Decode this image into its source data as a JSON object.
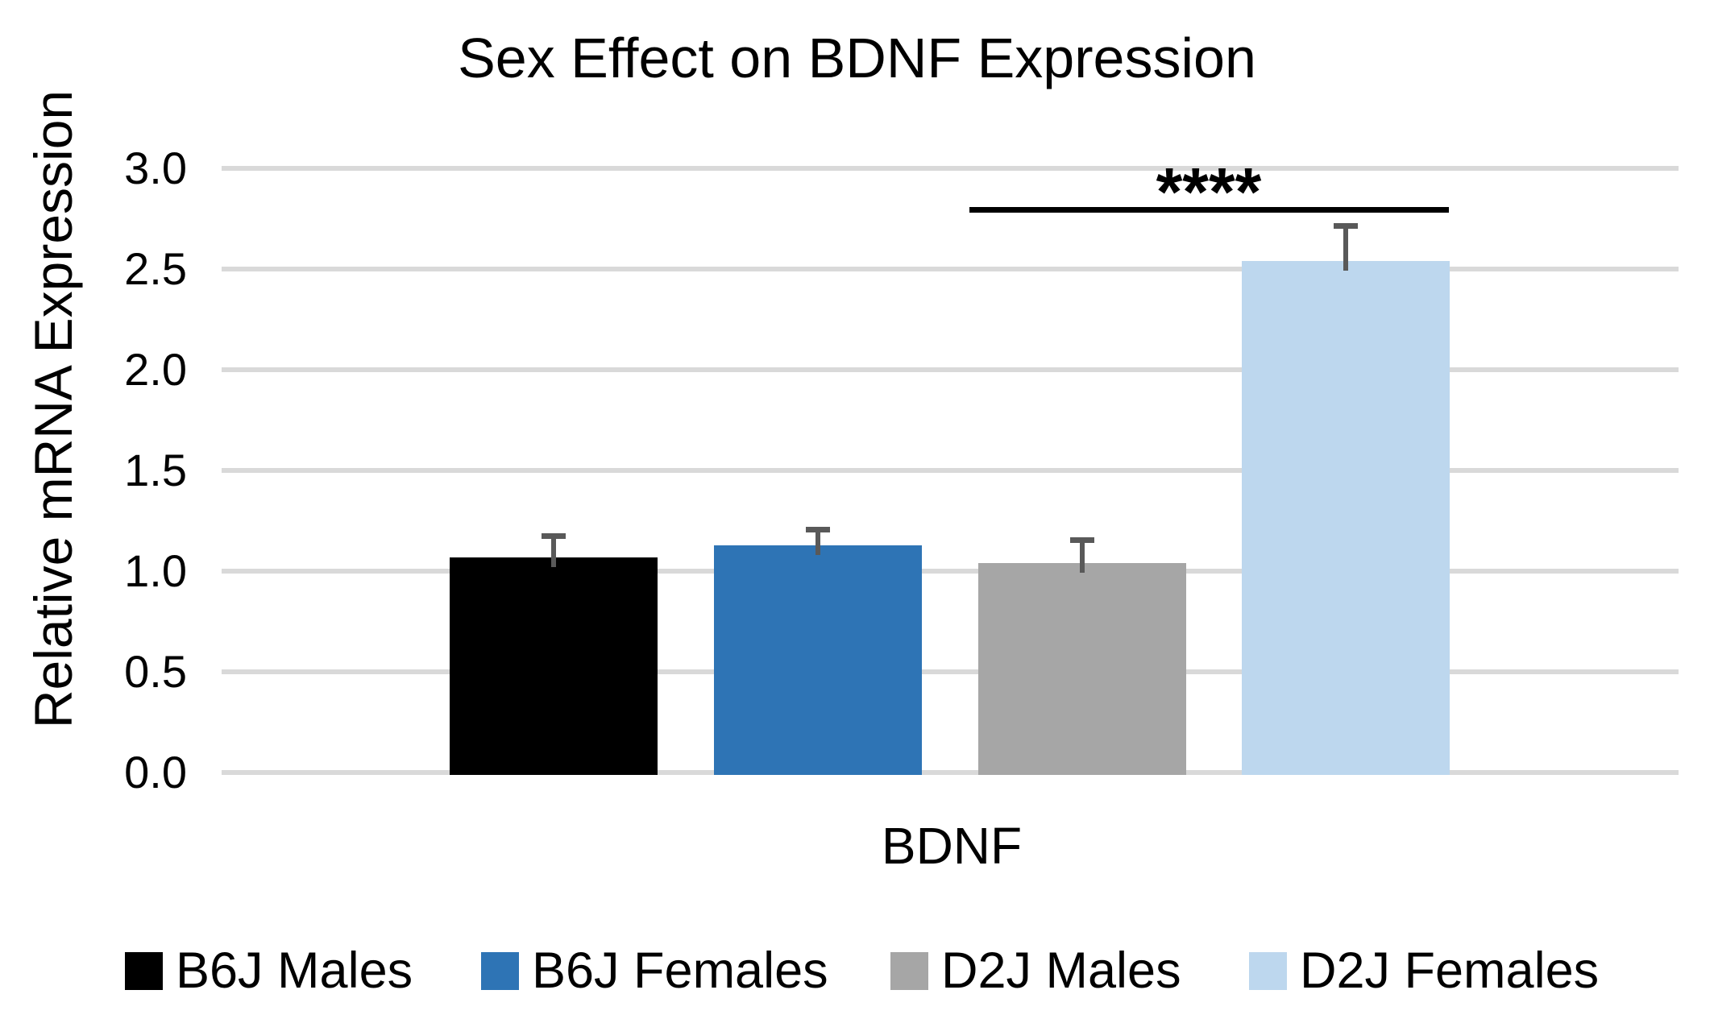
{
  "chart_data": {
    "type": "bar",
    "title": "Sex Effect on BDNF Expression",
    "xlabel": "BDNF",
    "ylabel": "Relative mRNA Expression",
    "categories": [
      "BDNF"
    ],
    "series": [
      {
        "name": "B6J Males",
        "color": "#000000",
        "value": 1.07,
        "error_up": 0.12
      },
      {
        "name": "B6J Females",
        "color": "#2E74B5",
        "value": 1.13,
        "error_up": 0.09
      },
      {
        "name": "D2J Males",
        "color": "#A6A6A6",
        "value": 1.04,
        "error_up": 0.13
      },
      {
        "name": "D2J Females",
        "color": "#BDD7EE",
        "value": 2.54,
        "error_up": 0.19
      }
    ],
    "ylim": [
      0,
      3.0
    ],
    "ytick_step": 0.5,
    "yticks": [
      "0.0",
      "0.5",
      "1.0",
      "1.5",
      "2.0",
      "2.5",
      "3.0"
    ],
    "grid": true,
    "legend_position": "bottom",
    "annotation": {
      "text": "****",
      "between": [
        "D2J Males",
        "D2J Females"
      ],
      "y_value": 2.8
    }
  },
  "colors": {
    "background": "#FFFFFF",
    "gridline": "#D9D9D9",
    "error_bar": "#595959",
    "significance_line": "#000000",
    "text": "#000000"
  }
}
